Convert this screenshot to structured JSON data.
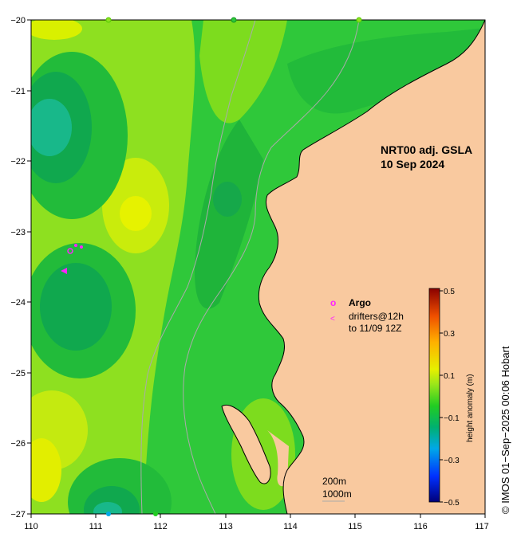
{
  "title": {
    "product": "NRT00 adj. GSLA",
    "date": "10 Sep 2024"
  },
  "axes": {
    "x_ticks": [
      "110",
      "111",
      "112",
      "113",
      "114",
      "115",
      "116",
      "117"
    ],
    "y_ticks": [
      "−20",
      "−21",
      "−22",
      "−23",
      "−24",
      "−25",
      "−26",
      "−27"
    ]
  },
  "legend": {
    "argo_label": "Argo",
    "argo_symbol": "o",
    "drifter_label_line1": "drifters@12h",
    "drifter_label_line2": "to 11/09 12Z",
    "drifter_symbol": "<"
  },
  "colorbar": {
    "label": "height anomaly (m)",
    "ticks": [
      "0.5",
      "0.3",
      "0.1",
      "−0.1",
      "−0.3",
      "−0.5"
    ],
    "range": [
      -0.5,
      0.5
    ]
  },
  "isobaths": {
    "label_1": "200m",
    "label_2": "1000m"
  },
  "credit": "© IMOS 01−Sep−2025 00:06 Hobart",
  "colors": {
    "land": "#f9c99f",
    "ocean_base": "#2fc83a",
    "argo": "#ff22ff",
    "isobath": "#aaaaaa"
  }
}
